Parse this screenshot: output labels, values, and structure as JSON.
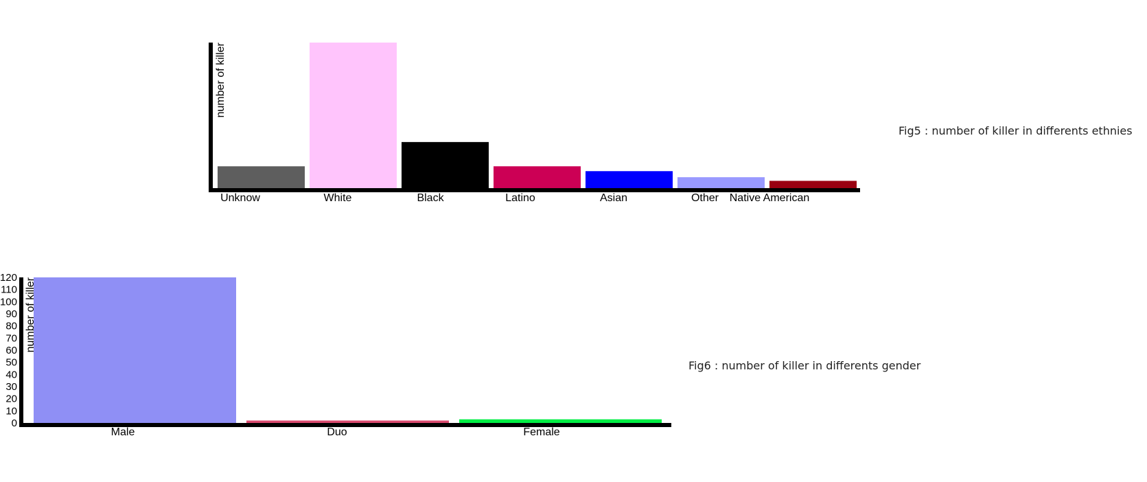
{
  "captions": {
    "fig5": "Fig5 : number of killer in differents ethnies",
    "fig6": "Fig6 : number of killer in differents gender"
  },
  "chart_data": [
    {
      "id": "fig5",
      "type": "bar",
      "ylabel": "number of killer",
      "xlabel": "",
      "yticks_visible": false,
      "ylim": [
        0,
        120
      ],
      "grid": false,
      "categories": [
        "Unknow",
        "White",
        "Black",
        "Latino",
        "Asian",
        "Other",
        "Native American"
      ],
      "values": [
        18,
        120,
        38,
        18,
        14,
        9,
        6
      ],
      "colors": [
        "#5e5e5e",
        "#ffc4fc",
        "#000000",
        "#cc0055",
        "#0000ff",
        "#9999ff",
        "#990011"
      ]
    },
    {
      "id": "fig6",
      "type": "bar",
      "ylabel": "number of killer",
      "xlabel": "",
      "yticks_visible": true,
      "ylim": [
        0,
        120
      ],
      "yticks": [
        0,
        10,
        20,
        30,
        40,
        50,
        60,
        70,
        80,
        90,
        100,
        110,
        120
      ],
      "grid": false,
      "categories": [
        "Male",
        "Duo",
        "Female"
      ],
      "values": [
        120,
        2,
        3
      ],
      "colors": [
        "#8f8ff5",
        "#d94a6e",
        "#00ee44"
      ]
    }
  ]
}
